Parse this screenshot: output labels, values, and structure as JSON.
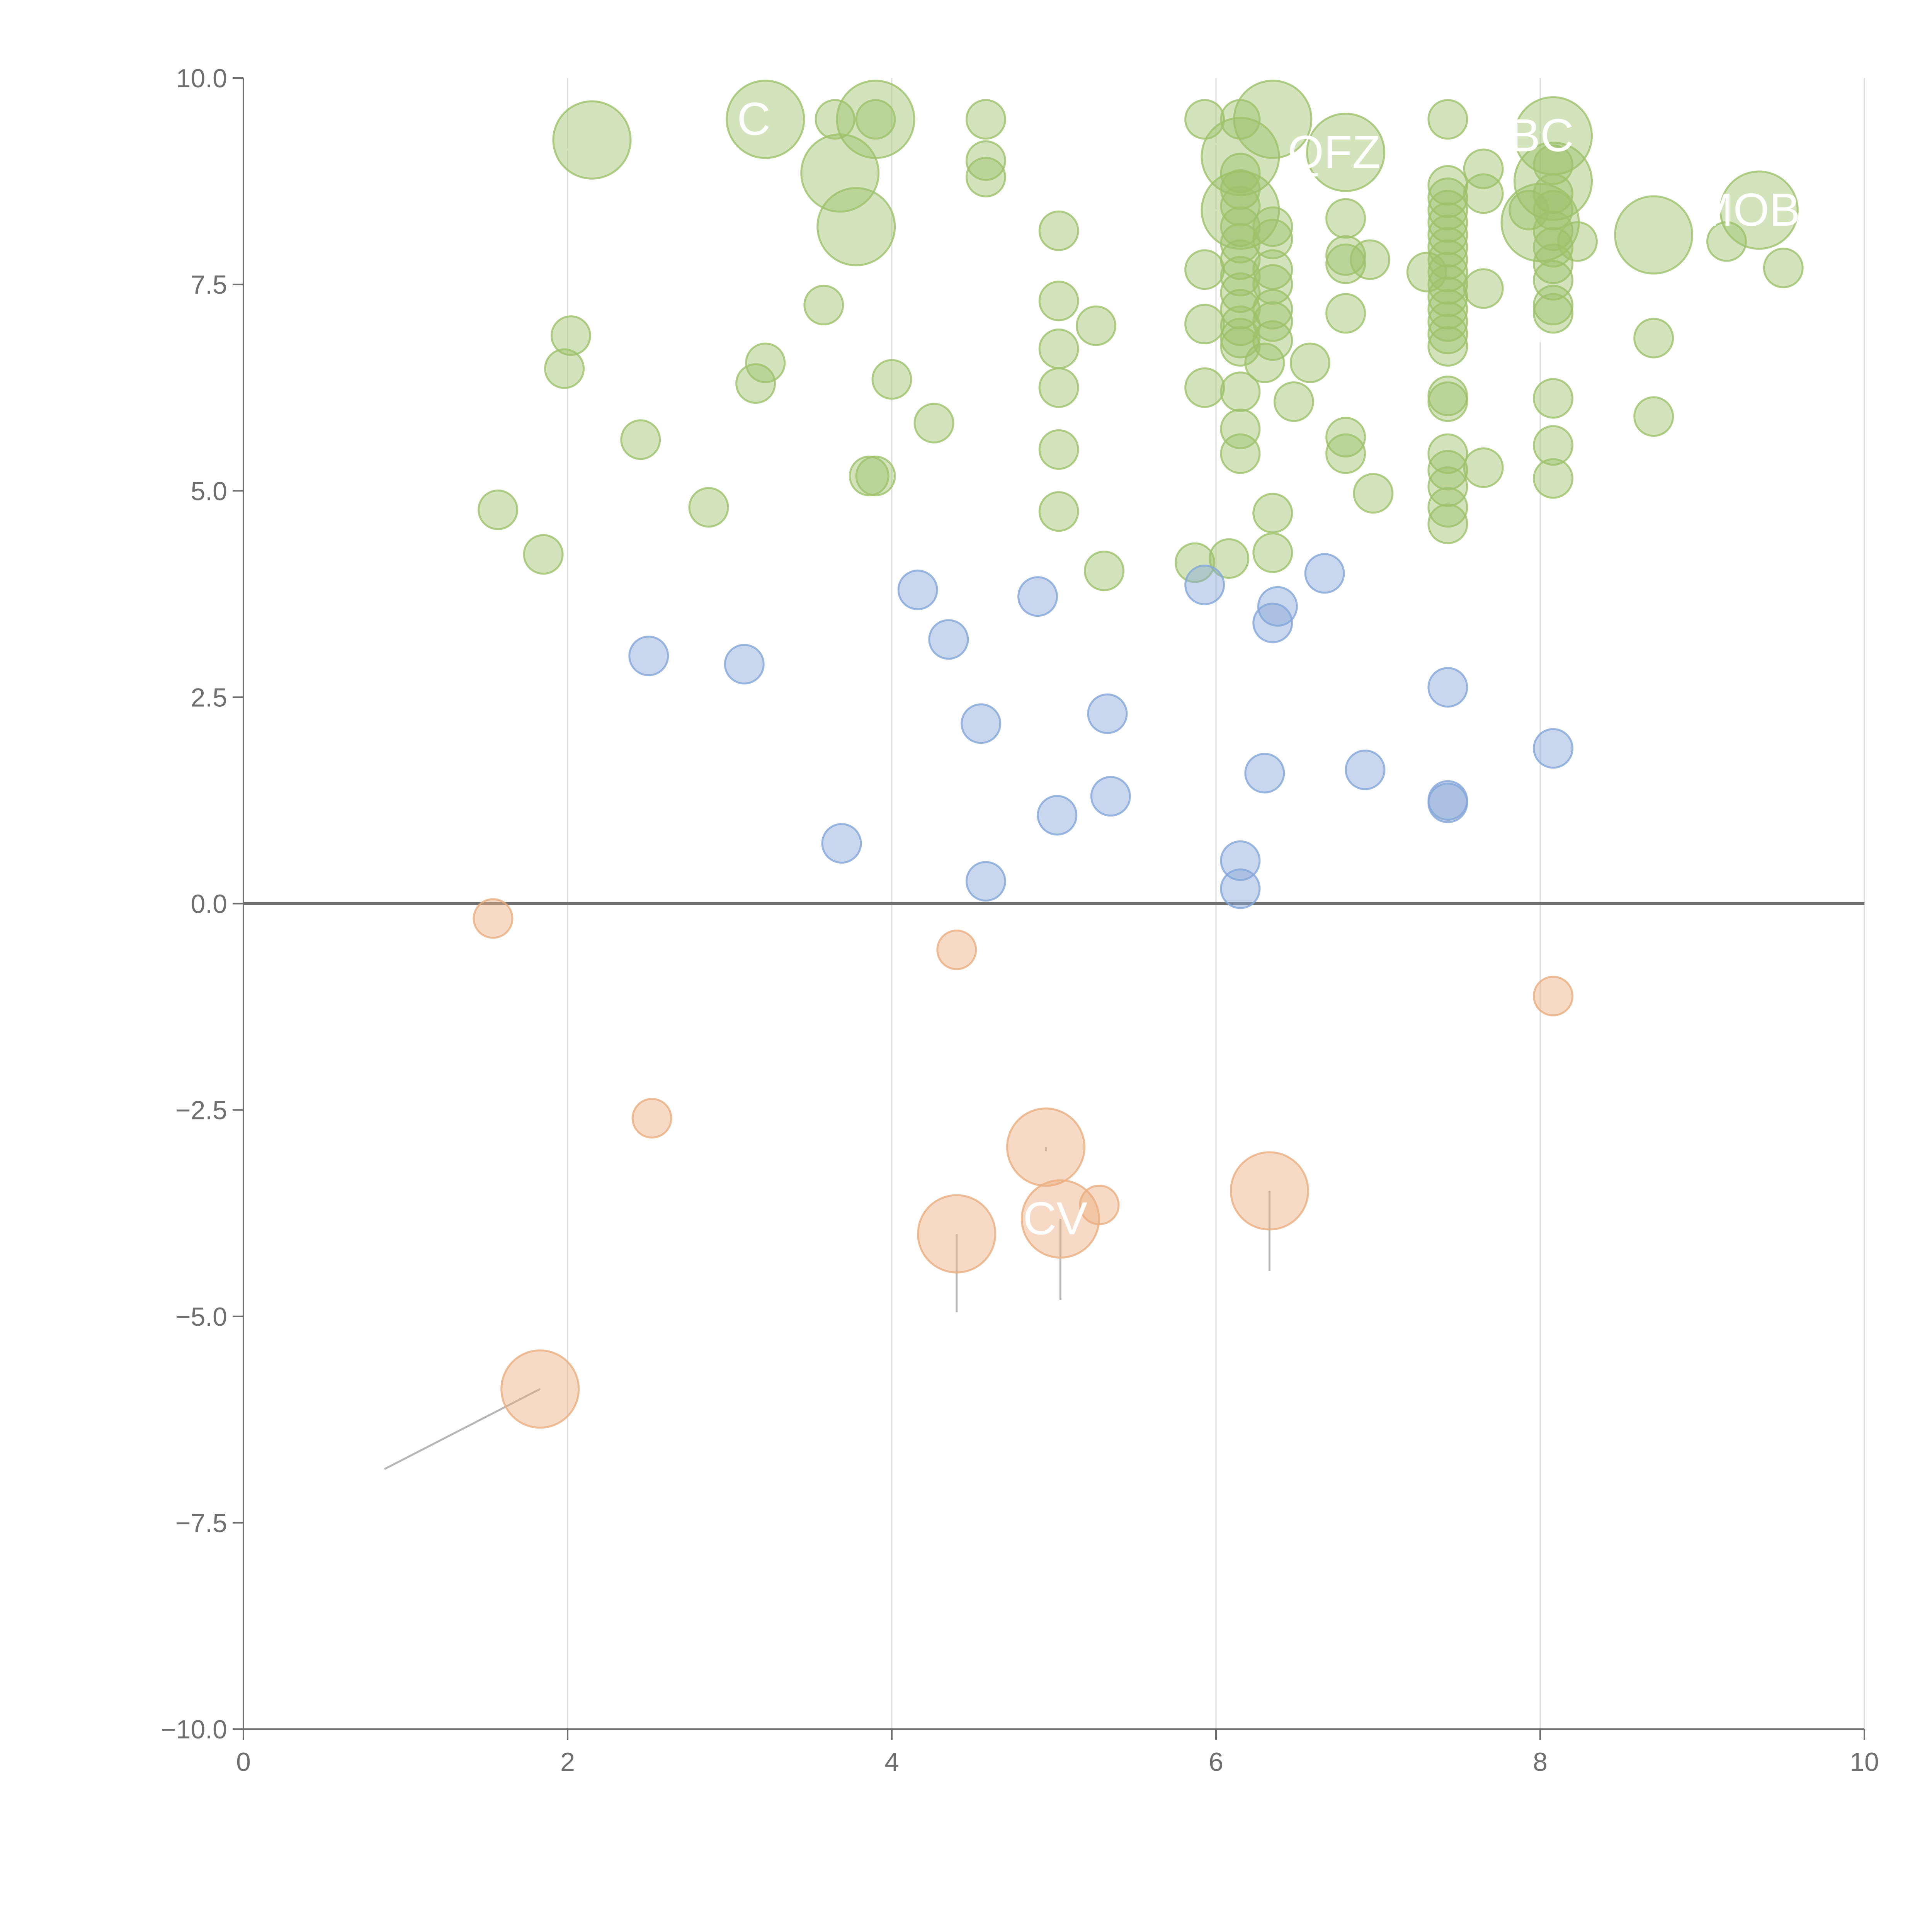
{
  "chart_data": {
    "type": "scatter",
    "title": "",
    "xlabel": "",
    "ylabel": "",
    "xlim": [
      0,
      10
    ],
    "ylim": [
      -10,
      10
    ],
    "x_ticks": [
      0,
      2,
      4,
      6,
      8,
      10
    ],
    "x_tick_labels": [
      "0",
      "2",
      "4",
      "6",
      "8",
      "10"
    ],
    "y_ticks": [
      -10,
      -7.5,
      -5,
      -2.5,
      0,
      2.5,
      5,
      7.5,
      10
    ],
    "y_tick_labels": [
      "−10.0",
      "−7.5",
      "−5.0",
      "−2.5",
      "0.0",
      "2.5",
      "5.0",
      "7.5",
      "10.0"
    ],
    "vertical_grid": true,
    "zero_line": true,
    "legend": "none",
    "series": [
      {
        "color": "#9dc26b",
        "points": [
          {
            "x": 2.15,
            "y": 9.25,
            "size": "large",
            "label": "",
            "leader": [
              1.7,
              8.9
            ]
          },
          {
            "x": 3.22,
            "y": 9.5,
            "size": "large",
            "label": "C",
            "leader": [
              2.8,
              9.3
            ]
          },
          {
            "x": 3.9,
            "y": 9.5,
            "size": "large",
            "label": "",
            "leader": [
              3.8,
              8.1
            ]
          },
          {
            "x": 3.68,
            "y": 8.85,
            "size": "large",
            "label": "",
            "leader": [
              3.3,
              8.3
            ]
          },
          {
            "x": 3.78,
            "y": 8.2,
            "size": "large",
            "label": "",
            "leader": [
              3.7,
              7.6
            ]
          },
          {
            "x": 6.35,
            "y": 9.5,
            "size": "large",
            "label": "",
            "leader": [
              6.1,
              9.2
            ]
          },
          {
            "x": 6.15,
            "y": 9.05,
            "size": "large",
            "label": "",
            "leader": [
              5.8,
              9.4
            ]
          },
          {
            "x": 6.8,
            "y": 9.1,
            "size": "large",
            "label": "QFZ",
            "leader": [
              6.6,
              9.4
            ]
          },
          {
            "x": 6.15,
            "y": 8.4,
            "size": "large",
            "label": "",
            "leader": [
              5.3,
              8.4
            ]
          },
          {
            "x": 8.08,
            "y": 9.3,
            "size": "large",
            "label": "BC",
            "leader": [
              7.9,
              9.4
            ]
          },
          {
            "x": 8.08,
            "y": 8.75,
            "size": "large",
            "label": "",
            "leader": [
              8.1,
              8.4
            ]
          },
          {
            "x": 8.0,
            "y": 8.25,
            "size": "large",
            "label": "",
            "leader": [
              8.0,
              6.8
            ]
          },
          {
            "x": 8.7,
            "y": 8.1,
            "size": "large",
            "label": "",
            "leader": [
              8.75,
              7.7
            ]
          },
          {
            "x": 9.35,
            "y": 8.4,
            "size": "large",
            "label": "MOB",
            "leader": [
              9.0,
              8.35
            ]
          },
          {
            "x": 3.65,
            "y": 9.5,
            "size": "small"
          },
          {
            "x": 3.9,
            "y": 9.5,
            "size": "small"
          },
          {
            "x": 4.58,
            "y": 9.5,
            "size": "small"
          },
          {
            "x": 4.58,
            "y": 9.0,
            "size": "small"
          },
          {
            "x": 4.58,
            "y": 8.8,
            "size": "small"
          },
          {
            "x": 5.93,
            "y": 9.5,
            "size": "small"
          },
          {
            "x": 6.15,
            "y": 9.5,
            "size": "small"
          },
          {
            "x": 7.43,
            "y": 9.5,
            "size": "small"
          },
          {
            "x": 7.65,
            "y": 8.9,
            "size": "small"
          },
          {
            "x": 7.65,
            "y": 8.6,
            "size": "small"
          },
          {
            "x": 6.8,
            "y": 8.3,
            "size": "small"
          },
          {
            "x": 5.03,
            "y": 8.15,
            "size": "small"
          },
          {
            "x": 6.35,
            "y": 8.2,
            "size": "small"
          },
          {
            "x": 6.35,
            "y": 8.05,
            "size": "small"
          },
          {
            "x": 6.8,
            "y": 7.85,
            "size": "small"
          },
          {
            "x": 6.8,
            "y": 7.75,
            "size": "small"
          },
          {
            "x": 6.95,
            "y": 7.8,
            "size": "small"
          },
          {
            "x": 7.3,
            "y": 7.65,
            "size": "small"
          },
          {
            "x": 5.93,
            "y": 7.68,
            "size": "small"
          },
          {
            "x": 6.35,
            "y": 7.68,
            "size": "small"
          },
          {
            "x": 6.35,
            "y": 7.5,
            "size": "small"
          },
          {
            "x": 3.58,
            "y": 7.25,
            "size": "small"
          },
          {
            "x": 5.03,
            "y": 7.3,
            "size": "small"
          },
          {
            "x": 6.35,
            "y": 7.2,
            "size": "small"
          },
          {
            "x": 6.8,
            "y": 7.15,
            "size": "small"
          },
          {
            "x": 7.65,
            "y": 7.45,
            "size": "small"
          },
          {
            "x": 5.26,
            "y": 7.0,
            "size": "small"
          },
          {
            "x": 5.93,
            "y": 7.02,
            "size": "small"
          },
          {
            "x": 6.35,
            "y": 7.05,
            "size": "small"
          },
          {
            "x": 2.02,
            "y": 6.88,
            "size": "small"
          },
          {
            "x": 5.03,
            "y": 6.72,
            "size": "small"
          },
          {
            "x": 6.35,
            "y": 6.82,
            "size": "small"
          },
          {
            "x": 8.7,
            "y": 6.85,
            "size": "small"
          },
          {
            "x": 1.98,
            "y": 6.48,
            "size": "small"
          },
          {
            "x": 3.22,
            "y": 6.55,
            "size": "small"
          },
          {
            "x": 3.16,
            "y": 6.3,
            "size": "small"
          },
          {
            "x": 4.0,
            "y": 6.35,
            "size": "small"
          },
          {
            "x": 6.3,
            "y": 6.55,
            "size": "small"
          },
          {
            "x": 6.58,
            "y": 6.55,
            "size": "small"
          },
          {
            "x": 5.03,
            "y": 6.25,
            "size": "small"
          },
          {
            "x": 5.93,
            "y": 6.25,
            "size": "small"
          },
          {
            "x": 6.15,
            "y": 6.2,
            "size": "small"
          },
          {
            "x": 6.48,
            "y": 6.08,
            "size": "small"
          },
          {
            "x": 8.08,
            "y": 6.12,
            "size": "small"
          },
          {
            "x": 4.26,
            "y": 5.82,
            "size": "small"
          },
          {
            "x": 8.7,
            "y": 5.9,
            "size": "small"
          },
          {
            "x": 6.15,
            "y": 5.75,
            "size": "small"
          },
          {
            "x": 2.45,
            "y": 5.62,
            "size": "small"
          },
          {
            "x": 6.8,
            "y": 5.65,
            "size": "small"
          },
          {
            "x": 8.08,
            "y": 5.55,
            "size": "small"
          },
          {
            "x": 5.03,
            "y": 5.5,
            "size": "small"
          },
          {
            "x": 6.15,
            "y": 5.45,
            "size": "small"
          },
          {
            "x": 6.8,
            "y": 5.45,
            "size": "small"
          },
          {
            "x": 7.43,
            "y": 5.45,
            "size": "small"
          },
          {
            "x": 7.65,
            "y": 5.28,
            "size": "small"
          },
          {
            "x": 7.43,
            "y": 5.25,
            "size": "small"
          },
          {
            "x": 3.86,
            "y": 5.18,
            "size": "small"
          },
          {
            "x": 3.9,
            "y": 5.18,
            "size": "small"
          },
          {
            "x": 7.43,
            "y": 5.05,
            "size": "small"
          },
          {
            "x": 8.08,
            "y": 5.15,
            "size": "small"
          },
          {
            "x": 6.97,
            "y": 4.97,
            "size": "small"
          },
          {
            "x": 7.43,
            "y": 4.8,
            "size": "small"
          },
          {
            "x": 1.57,
            "y": 4.77,
            "size": "small"
          },
          {
            "x": 2.87,
            "y": 4.8,
            "size": "small"
          },
          {
            "x": 5.03,
            "y": 4.75,
            "size": "small"
          },
          {
            "x": 6.35,
            "y": 4.73,
            "size": "small"
          },
          {
            "x": 7.43,
            "y": 4.6,
            "size": "small"
          },
          {
            "x": 1.85,
            "y": 4.23,
            "size": "small"
          },
          {
            "x": 6.35,
            "y": 4.25,
            "size": "small"
          },
          {
            "x": 5.31,
            "y": 4.03,
            "size": "small"
          },
          {
            "x": 5.87,
            "y": 4.13,
            "size": "small"
          },
          {
            "x": 6.08,
            "y": 4.18,
            "size": "small"
          },
          {
            "x": 6.15,
            "y": 8.85,
            "size": "small"
          },
          {
            "x": 6.15,
            "y": 8.65,
            "size": "small"
          },
          {
            "x": 6.15,
            "y": 8.45,
            "size": "small"
          },
          {
            "x": 6.15,
            "y": 8.2,
            "size": "small"
          },
          {
            "x": 6.15,
            "y": 8.0,
            "size": "small"
          },
          {
            "x": 6.15,
            "y": 7.8,
            "size": "small"
          },
          {
            "x": 6.15,
            "y": 7.6,
            "size": "small"
          },
          {
            "x": 6.15,
            "y": 7.4,
            "size": "small"
          },
          {
            "x": 6.15,
            "y": 7.2,
            "size": "small"
          },
          {
            "x": 6.15,
            "y": 7.0,
            "size": "small"
          },
          {
            "x": 6.15,
            "y": 6.85,
            "size": "small"
          },
          {
            "x": 6.15,
            "y": 6.75,
            "size": "small"
          },
          {
            "x": 7.43,
            "y": 8.7,
            "size": "small"
          },
          {
            "x": 7.43,
            "y": 8.55,
            "size": "small"
          },
          {
            "x": 7.43,
            "y": 8.4,
            "size": "small"
          },
          {
            "x": 7.43,
            "y": 8.25,
            "size": "small"
          },
          {
            "x": 7.43,
            "y": 8.1,
            "size": "small"
          },
          {
            "x": 7.43,
            "y": 7.95,
            "size": "small"
          },
          {
            "x": 7.43,
            "y": 7.8,
            "size": "small"
          },
          {
            "x": 7.43,
            "y": 7.65,
            "size": "small"
          },
          {
            "x": 7.43,
            "y": 7.5,
            "size": "small"
          },
          {
            "x": 7.43,
            "y": 7.35,
            "size": "small"
          },
          {
            "x": 7.43,
            "y": 7.2,
            "size": "small"
          },
          {
            "x": 7.43,
            "y": 7.05,
            "size": "small"
          },
          {
            "x": 7.43,
            "y": 6.9,
            "size": "small"
          },
          {
            "x": 7.43,
            "y": 6.75,
            "size": "small"
          },
          {
            "x": 7.43,
            "y": 6.15,
            "size": "small"
          },
          {
            "x": 7.43,
            "y": 6.08,
            "size": "small"
          },
          {
            "x": 8.08,
            "y": 8.95,
            "size": "small"
          },
          {
            "x": 8.08,
            "y": 8.6,
            "size": "small"
          },
          {
            "x": 8.08,
            "y": 8.4,
            "size": "small"
          },
          {
            "x": 8.08,
            "y": 8.15,
            "size": "small"
          },
          {
            "x": 8.08,
            "y": 7.95,
            "size": "small"
          },
          {
            "x": 8.08,
            "y": 7.75,
            "size": "small"
          },
          {
            "x": 8.08,
            "y": 7.55,
            "size": "small"
          },
          {
            "x": 8.08,
            "y": 7.25,
            "size": "small"
          },
          {
            "x": 8.08,
            "y": 7.15,
            "size": "small"
          },
          {
            "x": 8.23,
            "y": 8.02,
            "size": "small"
          },
          {
            "x": 7.93,
            "y": 8.4,
            "size": "small"
          },
          {
            "x": 9.15,
            "y": 8.02,
            "size": "small"
          },
          {
            "x": 9.5,
            "y": 7.7,
            "size": "small"
          }
        ]
      },
      {
        "color": "#84a6d8",
        "points": [
          {
            "x": 4.16,
            "y": 3.8,
            "size": "small"
          },
          {
            "x": 4.9,
            "y": 3.72,
            "size": "small"
          },
          {
            "x": 5.93,
            "y": 3.86,
            "size": "small"
          },
          {
            "x": 6.67,
            "y": 4.0,
            "size": "small"
          },
          {
            "x": 6.38,
            "y": 3.6,
            "size": "small"
          },
          {
            "x": 6.35,
            "y": 3.4,
            "size": "small"
          },
          {
            "x": 4.35,
            "y": 3.2,
            "size": "small"
          },
          {
            "x": 2.5,
            "y": 3.0,
            "size": "small"
          },
          {
            "x": 3.09,
            "y": 2.9,
            "size": "small"
          },
          {
            "x": 7.43,
            "y": 2.62,
            "size": "small"
          },
          {
            "x": 5.33,
            "y": 2.3,
            "size": "small"
          },
          {
            "x": 4.55,
            "y": 2.18,
            "size": "small"
          },
          {
            "x": 8.08,
            "y": 1.88,
            "size": "small"
          },
          {
            "x": 6.3,
            "y": 1.58,
            "size": "small"
          },
          {
            "x": 6.92,
            "y": 1.62,
            "size": "small"
          },
          {
            "x": 5.35,
            "y": 1.3,
            "size": "small"
          },
          {
            "x": 7.43,
            "y": 1.25,
            "size": "small"
          },
          {
            "x": 7.43,
            "y": 1.22,
            "size": "small"
          },
          {
            "x": 5.02,
            "y": 1.07,
            "size": "small"
          },
          {
            "x": 3.69,
            "y": 0.73,
            "size": "small"
          },
          {
            "x": 6.15,
            "y": 0.52,
            "size": "small"
          },
          {
            "x": 4.58,
            "y": 0.27,
            "size": "small"
          },
          {
            "x": 6.15,
            "y": 0.18,
            "size": "small"
          }
        ]
      },
      {
        "color": "#eaae7f",
        "points": [
          {
            "x": 1.54,
            "y": -0.18,
            "size": "small"
          },
          {
            "x": 4.4,
            "y": -0.56,
            "size": "small"
          },
          {
            "x": 8.08,
            "y": -1.12,
            "size": "small"
          },
          {
            "x": 2.52,
            "y": -2.6,
            "size": "small"
          },
          {
            "x": 5.28,
            "y": -3.65,
            "size": "small"
          },
          {
            "x": 4.95,
            "y": -2.95,
            "size": "large",
            "label": "",
            "leader": [
              4.95,
              -3.0
            ]
          },
          {
            "x": 5.04,
            "y": -3.82,
            "size": "large",
            "label": "ICV",
            "leader": [
              5.04,
              -4.8
            ]
          },
          {
            "x": 4.4,
            "y": -4.0,
            "size": "large",
            "label": "",
            "leader": [
              4.4,
              -4.95
            ]
          },
          {
            "x": 6.33,
            "y": -3.48,
            "size": "large",
            "label": "",
            "leader": [
              6.33,
              -4.45
            ]
          },
          {
            "x": 1.83,
            "y": -5.88,
            "size": "large",
            "label": "",
            "leader": [
              0.87,
              -6.85
            ]
          }
        ]
      }
    ]
  }
}
